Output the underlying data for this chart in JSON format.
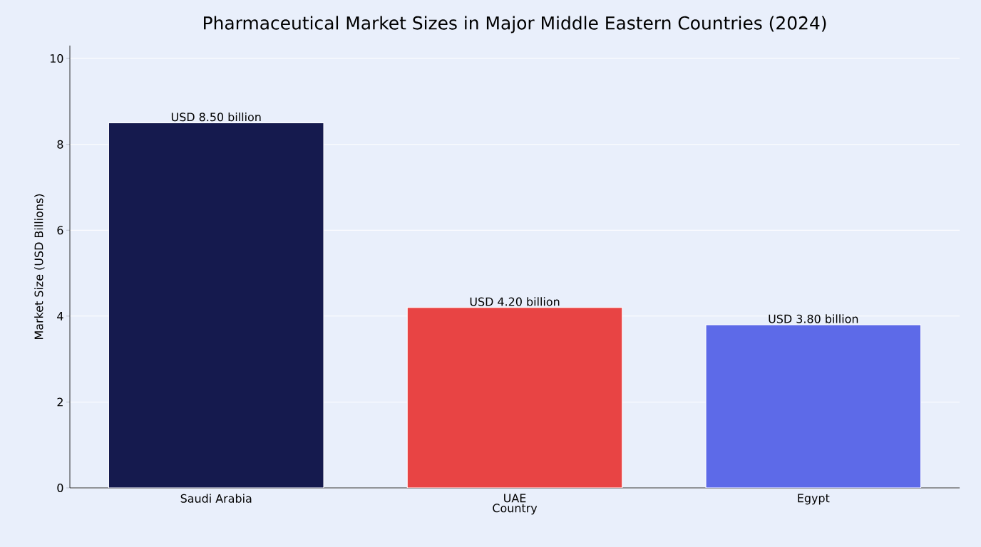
{
  "chart_data": {
    "type": "bar",
    "title": "Pharmaceutical Market Sizes in Major Middle Eastern Countries (2024)",
    "xlabel": "Country",
    "ylabel": "Market Size (USD Billions)",
    "categories": [
      "Saudi Arabia",
      "UAE",
      "Egypt"
    ],
    "values": [
      8.5,
      4.2,
      3.8
    ],
    "colors": [
      "#151a4e",
      "#e84444",
      "#5d6ae8"
    ],
    "value_labels": [
      "USD 8.50 billion",
      "USD 4.20 billion",
      "USD 3.80 billion"
    ],
    "ylim": [
      0,
      10.3
    ],
    "yticks": [
      0,
      2,
      4,
      6,
      8,
      10
    ],
    "grid": "y"
  }
}
